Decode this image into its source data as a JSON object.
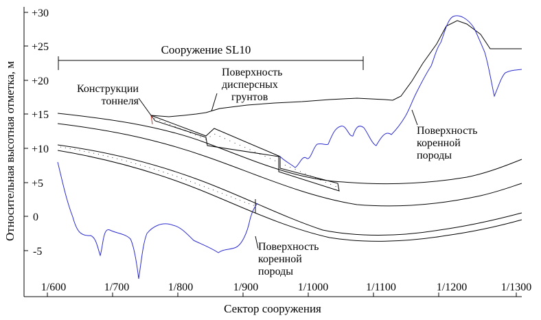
{
  "axes": {
    "ylabel": "Относительная высотная отметка, м",
    "xlabel": "Сектор сооружения",
    "y_ticks": [
      "+30",
      "+25",
      "+20",
      "+15",
      "+10",
      "+5",
      "0",
      "-5"
    ],
    "x_ticks": [
      "1/600",
      "1/700",
      "1/800",
      "1/900",
      "1/1000",
      "1/1100",
      "1/1200",
      "1/1300"
    ]
  },
  "annotations": {
    "structure_label": "Сооружение SL10",
    "soil_surface": [
      "Поверхность",
      "дисперсных",
      "грунтов"
    ],
    "tunnel_structures": [
      "Конструкции",
      "тоннеля"
    ],
    "bedrock_right": [
      "Поверхность",
      "коренной",
      "породы"
    ],
    "bedrock_bottom": [
      "Поверхность",
      "коренной",
      "породы"
    ]
  },
  "colors": {
    "bedrock_line": "#2a2ad0",
    "structure_lines": "#000000"
  }
}
